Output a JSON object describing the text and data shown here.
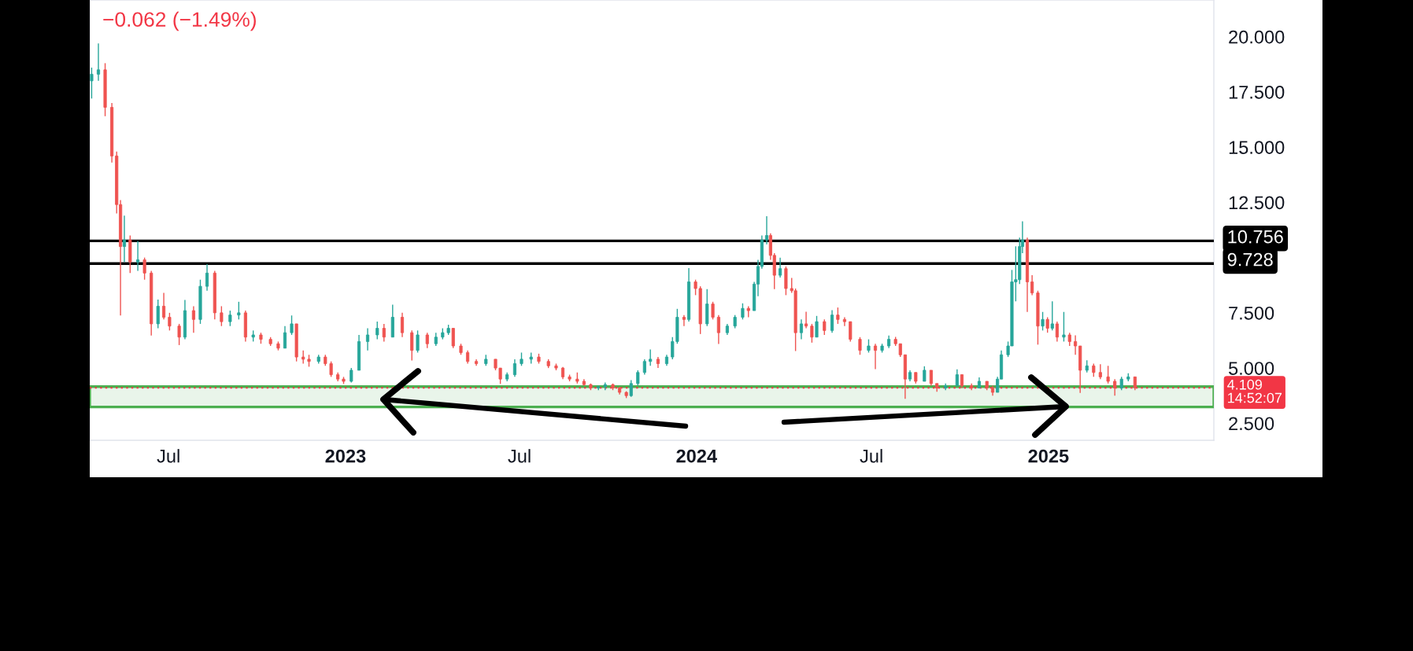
{
  "chart_data": {
    "type": "candlestick",
    "annotations": [
      "−0.062 (−1.49%)"
    ],
    "x": [
      "2022-04-12",
      "2022-04-19",
      "2022-04-26",
      "2022-05-03",
      "2022-05-08",
      "2022-05-12",
      "2022-05-16",
      "2022-05-22",
      "2022-05-30",
      "2022-06-06",
      "2022-06-13",
      "2022-06-20",
      "2022-06-26",
      "2022-07-02",
      "2022-07-12",
      "2022-07-18",
      "2022-07-27",
      "2022-08-03",
      "2022-08-10",
      "2022-08-18",
      "2022-08-25",
      "2022-09-03",
      "2022-09-12",
      "2022-09-19",
      "2022-09-27",
      "2022-10-05",
      "2022-10-15",
      "2022-10-23",
      "2022-10-30",
      "2022-11-06",
      "2022-11-11",
      "2022-11-18",
      "2022-11-24",
      "2022-12-04",
      "2022-12-11",
      "2022-12-17",
      "2022-12-24",
      "2022-12-30",
      "2023-01-07",
      "2023-01-15",
      "2023-01-24",
      "2023-02-03",
      "2023-02-10",
      "2023-02-19",
      "2023-03-01",
      "2023-03-11",
      "2023-03-17",
      "2023-03-27",
      "2023-04-05",
      "2023-04-12",
      "2023-04-18",
      "2023-04-23",
      "2023-05-01",
      "2023-05-08",
      "2023-05-17",
      "2023-05-27",
      "2023-06-06",
      "2023-06-11",
      "2023-06-18",
      "2023-06-26",
      "2023-07-03",
      "2023-07-13",
      "2023-07-21",
      "2023-07-31",
      "2023-08-08",
      "2023-08-15",
      "2023-08-22",
      "2023-08-30",
      "2023-09-06",
      "2023-09-13",
      "2023-09-21",
      "2023-09-28",
      "2023-10-06",
      "2023-10-13",
      "2023-10-20",
      "2023-10-25",
      "2023-11-01",
      "2023-11-08",
      "2023-11-14",
      "2023-11-22",
      "2023-12-01",
      "2023-12-07",
      "2023-12-12",
      "2023-12-19",
      "2023-12-24",
      "2023-12-31",
      "2024-01-05",
      "2024-01-12",
      "2024-01-18",
      "2024-01-24",
      "2024-02-02",
      "2024-02-10",
      "2024-02-18",
      "2024-02-24",
      "2024-03-01",
      "2024-03-05",
      "2024-03-09",
      "2024-03-14",
      "2024-03-18",
      "2024-03-22",
      "2024-03-28",
      "2024-04-03",
      "2024-04-09",
      "2024-04-13",
      "2024-04-19",
      "2024-04-24",
      "2024-04-30",
      "2024-05-05",
      "2024-05-13",
      "2024-05-21",
      "2024-05-27",
      "2024-06-03",
      "2024-06-09",
      "2024-06-19",
      "2024-06-28",
      "2024-07-05",
      "2024-07-12",
      "2024-07-19",
      "2024-07-26",
      "2024-07-31",
      "2024-08-05",
      "2024-08-10",
      "2024-08-16",
      "2024-08-25",
      "2024-09-01",
      "2024-09-07",
      "2024-09-16",
      "2024-09-28",
      "2024-10-03",
      "2024-10-13",
      "2024-10-21",
      "2024-10-29",
      "2024-11-04",
      "2024-11-09",
      "2024-11-13",
      "2024-11-20",
      "2024-11-24",
      "2024-11-28",
      "2024-12-02",
      "2024-12-05",
      "2024-12-10",
      "2024-12-15",
      "2024-12-21",
      "2024-12-26",
      "2024-12-31",
      "2025-01-05",
      "2025-01-10",
      "2025-01-17",
      "2025-01-23",
      "2025-01-29",
      "2025-02-03",
      "2025-02-10",
      "2025-02-17",
      "2025-02-24",
      "2025-03-04",
      "2025-03-11",
      "2025-03-18",
      "2025-03-25",
      "2025-04-01"
    ],
    "ohlc": [
      [
        18.0,
        18.6,
        17.2,
        18.3
      ],
      [
        18.3,
        19.69,
        18.0,
        18.5
      ],
      [
        18.5,
        18.8,
        16.4,
        16.8
      ],
      [
        16.8,
        17.0,
        14.3,
        14.6
      ],
      [
        14.6,
        14.8,
        12.0,
        12.4
      ],
      [
        12.4,
        12.6,
        7.38,
        10.5
      ],
      [
        10.5,
        11.9,
        9.8,
        10.8
      ],
      [
        10.8,
        11.0,
        9.3,
        9.8
      ],
      [
        9.8,
        10.75,
        9.4,
        9.9
      ],
      [
        9.9,
        10.0,
        9.0,
        9.3
      ],
      [
        9.3,
        9.4,
        6.47,
        7.0
      ],
      [
        7.0,
        8.1,
        6.8,
        7.8
      ],
      [
        7.8,
        8.4,
        7.2,
        7.3
      ],
      [
        7.3,
        7.5,
        6.7,
        6.9
      ],
      [
        6.9,
        7.0,
        6.04,
        6.4
      ],
      [
        6.4,
        8.08,
        6.3,
        7.6
      ],
      [
        7.6,
        7.8,
        6.6,
        7.2
      ],
      [
        7.2,
        9.0,
        7.0,
        8.7
      ],
      [
        8.7,
        9.7,
        8.5,
        9.3
      ],
      [
        9.3,
        9.4,
        7.2,
        7.5
      ],
      [
        7.5,
        7.8,
        6.9,
        7.1
      ],
      [
        7.1,
        7.6,
        6.9,
        7.4
      ],
      [
        7.4,
        8.0,
        7.2,
        7.5
      ],
      [
        7.5,
        7.6,
        6.2,
        6.4
      ],
      [
        6.4,
        6.7,
        6.2,
        6.5
      ],
      [
        6.5,
        6.6,
        6.1,
        6.3
      ],
      [
        6.3,
        6.4,
        6.0,
        6.1
      ],
      [
        6.1,
        6.2,
        5.8,
        5.9
      ],
      [
        5.9,
        6.9,
        5.9,
        6.6
      ],
      [
        6.6,
        7.38,
        6.5,
        7.0
      ],
      [
        7.0,
        7.0,
        5.3,
        5.5
      ],
      [
        5.5,
        5.8,
        5.2,
        5.4
      ],
      [
        5.4,
        5.6,
        5.06,
        5.3
      ],
      [
        5.3,
        5.6,
        5.2,
        5.5
      ],
      [
        5.5,
        5.6,
        5.1,
        5.2
      ],
      [
        5.2,
        5.3,
        4.6,
        4.7
      ],
      [
        4.7,
        4.8,
        4.4,
        4.5
      ],
      [
        4.5,
        4.6,
        4.28,
        4.4
      ],
      [
        4.4,
        5.0,
        4.35,
        4.9
      ],
      [
        4.9,
        6.5,
        4.9,
        6.2
      ],
      [
        6.2,
        6.8,
        5.8,
        6.5
      ],
      [
        6.5,
        7.1,
        6.3,
        6.8
      ],
      [
        6.8,
        7.0,
        6.2,
        6.4
      ],
      [
        6.4,
        7.87,
        6.4,
        7.3
      ],
      [
        7.3,
        7.5,
        6.4,
        6.6
      ],
      [
        6.6,
        6.7,
        5.34,
        5.8
      ],
      [
        5.8,
        6.7,
        5.7,
        6.5
      ],
      [
        6.5,
        6.6,
        5.9,
        6.1
      ],
      [
        6.1,
        6.6,
        6.0,
        6.4
      ],
      [
        6.4,
        6.8,
        6.3,
        6.6
      ],
      [
        6.6,
        6.96,
        6.5,
        6.8
      ],
      [
        6.8,
        6.8,
        5.9,
        6.0
      ],
      [
        6.0,
        6.1,
        5.6,
        5.7
      ],
      [
        5.7,
        5.8,
        5.2,
        5.3
      ],
      [
        5.3,
        5.4,
        5.1,
        5.2
      ],
      [
        5.2,
        5.6,
        5.1,
        5.4
      ],
      [
        5.4,
        5.4,
        4.9,
        5.0
      ],
      [
        5.0,
        5.0,
        4.28,
        4.5
      ],
      [
        4.5,
        4.8,
        4.4,
        4.7
      ],
      [
        4.7,
        5.4,
        4.6,
        5.2
      ],
      [
        5.2,
        5.7,
        5.1,
        5.4
      ],
      [
        5.4,
        5.7,
        5.2,
        5.5
      ],
      [
        5.5,
        5.65,
        5.2,
        5.3
      ],
      [
        5.3,
        5.4,
        5.0,
        5.1
      ],
      [
        5.1,
        5.2,
        4.9,
        5.0
      ],
      [
        5.0,
        5.05,
        4.5,
        4.6
      ],
      [
        4.6,
        4.7,
        4.4,
        4.5
      ],
      [
        4.5,
        4.8,
        4.3,
        4.4
      ],
      [
        4.4,
        4.5,
        4.2,
        4.25
      ],
      [
        4.25,
        4.3,
        4.0,
        4.1
      ],
      [
        4.1,
        4.2,
        4.0,
        4.15
      ],
      [
        4.15,
        4.35,
        4.0,
        4.25
      ],
      [
        4.25,
        4.3,
        4.0,
        4.1
      ],
      [
        4.1,
        4.15,
        3.8,
        3.9
      ],
      [
        3.9,
        3.95,
        3.64,
        3.75
      ],
      [
        3.75,
        4.45,
        3.7,
        4.3
      ],
      [
        4.3,
        4.9,
        4.2,
        4.8
      ],
      [
        4.8,
        5.4,
        4.7,
        5.3
      ],
      [
        5.3,
        5.84,
        5.1,
        5.4
      ],
      [
        5.4,
        5.5,
        5.0,
        5.2
      ],
      [
        5.2,
        5.6,
        5.1,
        5.5
      ],
      [
        5.5,
        6.4,
        5.4,
        6.2
      ],
      [
        6.2,
        7.68,
        6.1,
        7.3
      ],
      [
        7.3,
        7.4,
        6.9,
        7.2
      ],
      [
        7.2,
        9.52,
        7.1,
        8.9
      ],
      [
        8.9,
        9.0,
        8.3,
        8.6
      ],
      [
        8.6,
        8.7,
        6.54,
        7.0
      ],
      [
        7.0,
        8.57,
        6.9,
        7.9
      ],
      [
        7.9,
        8.0,
        7.2,
        7.3
      ],
      [
        7.3,
        7.4,
        6.09,
        6.6
      ],
      [
        6.6,
        7.0,
        6.5,
        6.9
      ],
      [
        6.9,
        7.4,
        6.8,
        7.3
      ],
      [
        7.3,
        7.93,
        7.2,
        7.7
      ],
      [
        7.7,
        7.8,
        7.3,
        7.6
      ],
      [
        7.6,
        8.9,
        7.6,
        8.8
      ],
      [
        8.8,
        9.9,
        8.25,
        9.6
      ],
      [
        9.6,
        11.0,
        9.5,
        10.8
      ],
      [
        10.8,
        11.87,
        10.6,
        11.0
      ],
      [
        11.0,
        11.1,
        9.9,
        10.1
      ],
      [
        10.1,
        10.2,
        8.57,
        9.2
      ],
      [
        9.2,
        10.0,
        9.1,
        9.5
      ],
      [
        9.5,
        9.6,
        8.3,
        8.6
      ],
      [
        8.6,
        9.08,
        8.4,
        8.5
      ],
      [
        8.5,
        8.6,
        5.77,
        6.6
      ],
      [
        6.6,
        7.2,
        6.3,
        7.0
      ],
      [
        7.0,
        7.55,
        6.8,
        6.9
      ],
      [
        6.9,
        7.0,
        6.15,
        6.4
      ],
      [
        6.4,
        7.36,
        6.4,
        7.1
      ],
      [
        7.1,
        7.2,
        6.5,
        6.7
      ],
      [
        6.7,
        7.62,
        6.6,
        7.4
      ],
      [
        7.4,
        7.74,
        7.0,
        7.2
      ],
      [
        7.2,
        7.3,
        6.9,
        7.1
      ],
      [
        7.1,
        7.1,
        6.2,
        6.3
      ],
      [
        6.3,
        6.4,
        5.6,
        5.8
      ],
      [
        5.8,
        6.3,
        5.7,
        6.0
      ],
      [
        6.0,
        6.1,
        4.95,
        5.8
      ],
      [
        5.8,
        6.1,
        5.7,
        6.0
      ],
      [
        6.0,
        6.47,
        5.9,
        6.3
      ],
      [
        6.3,
        6.41,
        6.0,
        6.1
      ],
      [
        6.1,
        6.1,
        5.5,
        5.6
      ],
      [
        5.6,
        5.6,
        3.61,
        4.5
      ],
      [
        4.5,
        4.9,
        4.4,
        4.8
      ],
      [
        4.8,
        4.8,
        4.3,
        4.4
      ],
      [
        4.4,
        5.08,
        4.4,
        4.9
      ],
      [
        4.9,
        4.9,
        4.2,
        4.3
      ],
      [
        4.3,
        4.3,
        3.93,
        4.1
      ],
      [
        4.1,
        4.3,
        4.0,
        4.2
      ],
      [
        4.2,
        4.94,
        4.2,
        4.7
      ],
      [
        4.7,
        4.7,
        4.1,
        4.2
      ],
      [
        4.2,
        4.3,
        4.0,
        4.1
      ],
      [
        4.1,
        4.58,
        4.1,
        4.4
      ],
      [
        4.4,
        4.4,
        4.0,
        4.1
      ],
      [
        4.1,
        4.2,
        3.75,
        3.9
      ],
      [
        3.9,
        4.6,
        3.9,
        4.5
      ],
      [
        4.5,
        5.8,
        4.5,
        5.6
      ],
      [
        5.6,
        6.2,
        5.5,
        6.0
      ],
      [
        6.0,
        9.44,
        6.0,
        8.9
      ],
      [
        8.9,
        10.51,
        8.02,
        9.0
      ],
      [
        9.0,
        10.9,
        8.8,
        10.5
      ],
      [
        10.5,
        11.64,
        10.2,
        10.8
      ],
      [
        10.8,
        10.9,
        7.54,
        8.9
      ],
      [
        8.9,
        9.2,
        8.3,
        8.4
      ],
      [
        8.4,
        8.5,
        6.06,
        6.9
      ],
      [
        6.9,
        7.54,
        6.7,
        7.2
      ],
      [
        7.2,
        7.3,
        6.6,
        6.8
      ],
      [
        6.8,
        8.02,
        6.7,
        7.0
      ],
      [
        7.0,
        7.1,
        6.2,
        6.4
      ],
      [
        6.4,
        7.54,
        6.2,
        6.5
      ],
      [
        6.5,
        6.6,
        6.0,
        6.2
      ],
      [
        6.2,
        6.48,
        5.6,
        6.0
      ],
      [
        6.0,
        6.0,
        3.87,
        4.9
      ],
      [
        4.9,
        5.35,
        4.8,
        5.1
      ],
      [
        5.1,
        5.2,
        4.6,
        4.8
      ],
      [
        4.8,
        5.17,
        4.5,
        4.6
      ],
      [
        4.6,
        5.1,
        4.3,
        4.4
      ],
      [
        4.4,
        4.5,
        3.75,
        4.1
      ],
      [
        4.1,
        4.6,
        4.0,
        4.5
      ],
      [
        4.5,
        4.76,
        4.4,
        4.6
      ],
      [
        4.6,
        4.6,
        4.0,
        4.109
      ]
    ],
    "colors": [
      "#26a69a",
      "#26a69a",
      "#ef5350",
      "#ef5350",
      "#ef5350",
      "#ef5350",
      "#26a69a",
      "#ef5350",
      "#26a69a",
      "#ef5350",
      "#ef5350",
      "#26a69a",
      "#ef5350",
      "#ef5350",
      "#ef5350",
      "#26a69a",
      "#ef5350",
      "#26a69a",
      "#26a69a",
      "#ef5350",
      "#ef5350",
      "#26a69a",
      "#26a69a",
      "#ef5350",
      "#26a69a",
      "#ef5350",
      "#ef5350",
      "#ef5350",
      "#26a69a",
      "#26a69a",
      "#ef5350",
      "#ef5350",
      "#ef5350",
      "#26a69a",
      "#ef5350",
      "#ef5350",
      "#ef5350",
      "#ef5350",
      "#26a69a",
      "#26a69a",
      "#26a69a",
      "#26a69a",
      "#ef5350",
      "#26a69a",
      "#ef5350",
      "#ef5350",
      "#26a69a",
      "#ef5350",
      "#26a69a",
      "#26a69a",
      "#26a69a",
      "#ef5350",
      "#ef5350",
      "#ef5350",
      "#ef5350",
      "#26a69a",
      "#ef5350",
      "#ef5350",
      "#26a69a",
      "#26a69a",
      "#26a69a",
      "#26a69a",
      "#ef5350",
      "#ef5350",
      "#ef5350",
      "#ef5350",
      "#ef5350",
      "#ef5350",
      "#ef5350",
      "#ef5350",
      "#26a69a",
      "#26a69a",
      "#ef5350",
      "#ef5350",
      "#ef5350",
      "#26a69a",
      "#26a69a",
      "#26a69a",
      "#26a69a",
      "#ef5350",
      "#26a69a",
      "#26a69a",
      "#26a69a",
      "#ef5350",
      "#26a69a",
      "#ef5350",
      "#ef5350",
      "#26a69a",
      "#ef5350",
      "#ef5350",
      "#26a69a",
      "#26a69a",
      "#26a69a",
      "#ef5350",
      "#26a69a",
      "#26a69a",
      "#26a69a",
      "#26a69a",
      "#ef5350",
      "#ef5350",
      "#26a69a",
      "#ef5350",
      "#ef5350",
      "#ef5350",
      "#26a69a",
      "#ef5350",
      "#ef5350",
      "#26a69a",
      "#ef5350",
      "#26a69a",
      "#ef5350",
      "#ef5350",
      "#ef5350",
      "#ef5350",
      "#26a69a",
      "#ef5350",
      "#26a69a",
      "#26a69a",
      "#ef5350",
      "#ef5350",
      "#ef5350",
      "#26a69a",
      "#ef5350",
      "#26a69a",
      "#ef5350",
      "#ef5350",
      "#26a69a",
      "#26a69a",
      "#ef5350",
      "#ef5350",
      "#26a69a",
      "#ef5350",
      "#ef5350",
      "#26a69a",
      "#26a69a",
      "#26a69a",
      "#26a69a",
      "#26a69a",
      "#26a69a",
      "#26a69a",
      "#ef5350",
      "#ef5350",
      "#ef5350",
      "#26a69a",
      "#ef5350",
      "#26a69a",
      "#ef5350",
      "#26a69a",
      "#ef5350",
      "#ef5350",
      "#ef5350",
      "#26a69a",
      "#ef5350",
      "#ef5350",
      "#ef5350",
      "#ef5350",
      "#26a69a",
      "#26a69a",
      "#ef5350"
    ],
    "xlim": [
      "2022-04-10",
      "2025-06-22"
    ],
    "xticks": [
      {
        "value": "2022-07-01",
        "label": "Jul"
      },
      {
        "value": "2023-01-01",
        "label": "2023"
      },
      {
        "value": "2023-07-01",
        "label": "Jul"
      },
      {
        "value": "2024-01-01",
        "label": "2024"
      },
      {
        "value": "2024-07-01",
        "label": "Jul"
      },
      {
        "value": "2025-01-01",
        "label": "2025"
      }
    ],
    "ylim": [
      1.73,
      21.66
    ],
    "yticks": [
      {
        "value": 2.5,
        "label": "2.500"
      },
      {
        "value": 5,
        "label": "5.000"
      },
      {
        "value": 7.5,
        "label": "7.500"
      },
      {
        "value": 12.5,
        "label": "12.500"
      },
      {
        "value": 15,
        "label": "15.000"
      },
      {
        "value": 17.5,
        "label": "17.500"
      },
      {
        "value": 20,
        "label": "20.000"
      }
    ],
    "ref_lines": [
      {
        "axis": "y",
        "value": 10.756,
        "label": "10.756",
        "color": "#000000",
        "line_style": "solid"
      },
      {
        "axis": "y",
        "value": 9.728,
        "label": "9.728",
        "color": "#000000",
        "line_style": "solid"
      },
      {
        "axis": "y",
        "value": 4.109,
        "label": "4.109\n14:52:07",
        "color": "#f23645",
        "line_style": "dotted"
      }
    ],
    "bands": [
      {
        "axis": "y",
        "from": 3.24,
        "to": 4.16,
        "color": "#4caf50"
      }
    ]
  }
}
